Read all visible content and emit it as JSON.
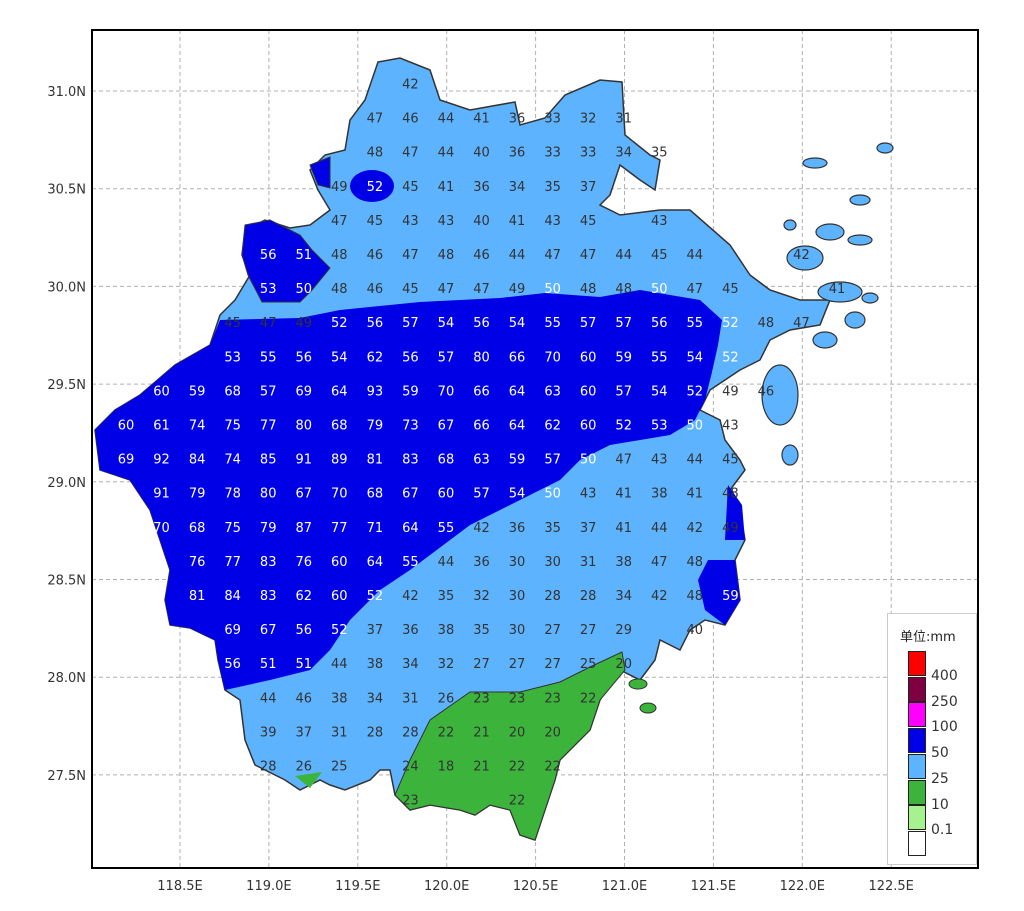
{
  "axes": {
    "lat_labels": [
      "31.0N",
      "30.5N",
      "30.0N",
      "29.5N",
      "29.0N",
      "28.5N",
      "28.0N",
      "27.5N"
    ],
    "lon_labels": [
      "118.5E",
      "119.0E",
      "119.5E",
      "120.0E",
      "120.5E",
      "121.0E",
      "121.5E",
      "122.0E",
      "122.5E"
    ],
    "grid": "dashed"
  },
  "colors": {
    "frame": "#000000",
    "outline": "#333333",
    "grid": "#b0b0b0",
    "text_light": "#ffffff",
    "text_dark": "#333333"
  },
  "legend": {
    "unit": "单位:mm",
    "bins": [
      {
        "color": "#ff0000",
        "label": "400"
      },
      {
        "color": "#7f0040",
        "label": "250"
      },
      {
        "color": "#ff00ff",
        "label": "100"
      },
      {
        "color": "#0000e6",
        "label": "50"
      },
      {
        "color": "#5eb3ff",
        "label": "25"
      },
      {
        "color": "#3cb43c",
        "label": "10"
      },
      {
        "color": "#a6f28f",
        "label": "0.1"
      },
      {
        "color": "#ffffff",
        "label": ""
      }
    ]
  },
  "grid_values": [
    [
      null,
      null,
      null,
      null,
      null,
      null,
      null,
      null,
      42
    ],
    [
      null,
      null,
      null,
      null,
      null,
      null,
      null,
      47,
      46,
      44,
      41,
      36,
      33,
      32,
      31
    ],
    [
      null,
      null,
      null,
      null,
      null,
      null,
      null,
      48,
      47,
      44,
      40,
      36,
      33,
      33,
      34,
      35
    ],
    [
      null,
      null,
      null,
      null,
      null,
      null,
      49,
      52,
      45,
      41,
      36,
      34,
      35,
      37
    ],
    [
      null,
      null,
      null,
      null,
      null,
      null,
      47,
      45,
      43,
      43,
      40,
      41,
      43,
      45,
      null,
      43
    ],
    [
      null,
      null,
      null,
      null,
      56,
      51,
      48,
      46,
      47,
      48,
      46,
      44,
      47,
      47,
      44,
      45,
      44,
      null,
      null,
      42
    ],
    [
      null,
      null,
      null,
      null,
      53,
      50,
      48,
      46,
      45,
      47,
      47,
      49,
      50,
      48,
      48,
      50,
      47,
      45,
      null,
      null,
      41
    ],
    [
      null,
      null,
      null,
      45,
      47,
      49,
      52,
      56,
      57,
      54,
      56,
      54,
      55,
      57,
      57,
      56,
      55,
      52,
      48,
      47
    ],
    [
      null,
      null,
      null,
      53,
      55,
      56,
      54,
      62,
      56,
      57,
      80,
      66,
      70,
      60,
      59,
      55,
      54,
      52
    ],
    [
      null,
      60,
      59,
      68,
      57,
      69,
      64,
      93,
      59,
      70,
      66,
      64,
      63,
      60,
      57,
      54,
      52,
      49,
      46
    ],
    [
      60,
      61,
      74,
      75,
      77,
      80,
      68,
      79,
      73,
      67,
      66,
      64,
      62,
      60,
      52,
      53,
      50,
      43
    ],
    [
      69,
      92,
      84,
      74,
      85,
      91,
      89,
      81,
      83,
      68,
      63,
      59,
      57,
      50,
      47,
      43,
      44,
      45
    ],
    [
      null,
      91,
      79,
      78,
      80,
      67,
      70,
      68,
      67,
      60,
      57,
      54,
      50,
      43,
      41,
      38,
      41,
      48
    ],
    [
      null,
      70,
      68,
      75,
      79,
      87,
      77,
      71,
      64,
      55,
      42,
      36,
      35,
      37,
      41,
      44,
      42,
      49
    ],
    [
      null,
      null,
      76,
      77,
      83,
      76,
      60,
      64,
      55,
      44,
      36,
      30,
      30,
      31,
      38,
      47,
      48
    ],
    [
      null,
      null,
      81,
      84,
      83,
      62,
      60,
      52,
      42,
      35,
      32,
      30,
      28,
      28,
      34,
      42,
      48,
      59
    ],
    [
      null,
      null,
      null,
      69,
      67,
      56,
      52,
      37,
      36,
      38,
      35,
      30,
      27,
      27,
      29,
      null,
      40
    ],
    [
      null,
      null,
      null,
      56,
      51,
      51,
      44,
      38,
      34,
      32,
      27,
      27,
      27,
      25,
      20
    ],
    [
      null,
      null,
      null,
      null,
      44,
      46,
      38,
      34,
      31,
      26,
      23,
      23,
      23,
      22
    ],
    [
      null,
      null,
      null,
      null,
      39,
      37,
      31,
      28,
      28,
      22,
      21,
      20,
      20
    ],
    [
      null,
      null,
      null,
      null,
      28,
      26,
      25,
      null,
      24,
      18,
      21,
      22,
      22
    ],
    [
      null,
      null,
      null,
      null,
      null,
      null,
      null,
      null,
      23,
      null,
      null,
      22
    ]
  ]
}
